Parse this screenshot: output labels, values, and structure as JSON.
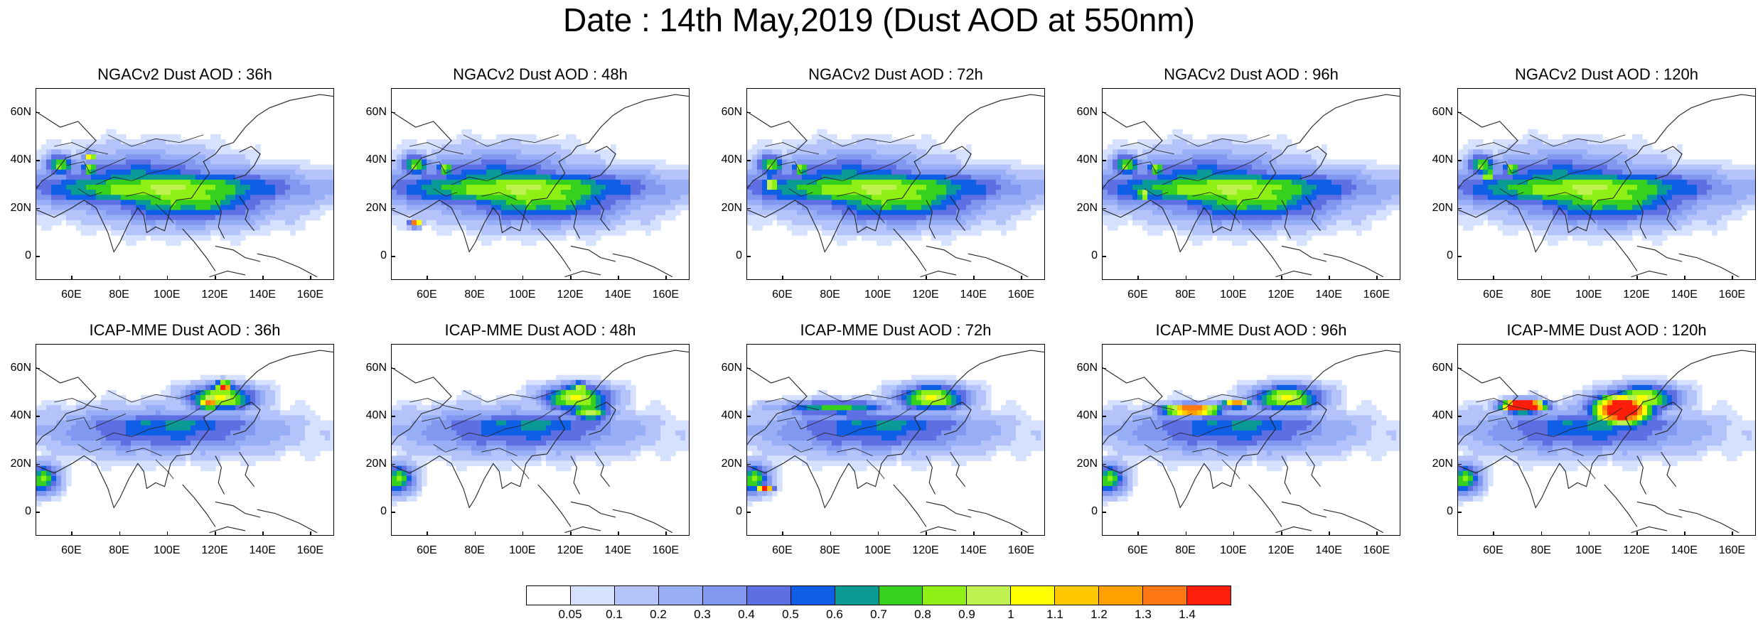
{
  "title": "Date : 14th May,2019 (Dust AOD at 550nm)",
  "lat_ticks": [
    "60N",
    "40N",
    "20N",
    "0"
  ],
  "lat_values": [
    60,
    40,
    20,
    0
  ],
  "lon_ticks": [
    "60E",
    "80E",
    "100E",
    "120E",
    "140E",
    "160E"
  ],
  "lon_values": [
    60,
    80,
    100,
    120,
    140,
    160
  ],
  "map_extent": {
    "lon": [
      45,
      170
    ],
    "lat": [
      -10,
      70
    ]
  },
  "panels": [
    {
      "title": "NGACv2 Dust AOD : 36h",
      "model": "NGACv2",
      "lead_hours": 36,
      "blobs": [
        [
          0.35,
          0.5,
          0.7,
          0.3,
          0.16,
          0.35
        ],
        [
          0.5,
          0.56,
          0.85,
          0.3,
          0.14,
          0.42
        ],
        [
          0.42,
          0.52,
          0.92,
          0.48,
          0.1,
          0.5
        ],
        [
          0.08,
          0.4,
          0.85,
          0.05,
          0.06,
          0.6
        ],
        [
          0.18,
          0.42,
          1.25,
          0.03,
          0.02,
          0.7
        ],
        [
          0.18,
          0.35,
          1.18,
          0.02,
          0.02,
          0.8
        ]
      ]
    },
    {
      "title": "NGACv2 Dust AOD : 48h",
      "model": "NGACv2",
      "lead_hours": 48,
      "blobs": [
        [
          0.35,
          0.5,
          0.7,
          0.3,
          0.16,
          0.35
        ],
        [
          0.5,
          0.56,
          0.85,
          0.3,
          0.14,
          0.42
        ],
        [
          0.42,
          0.52,
          0.92,
          0.48,
          0.1,
          0.5
        ],
        [
          0.08,
          0.4,
          0.85,
          0.05,
          0.06,
          0.6
        ],
        [
          0.08,
          0.7,
          1.5,
          0.02,
          0.02,
          0.7
        ],
        [
          0.18,
          0.42,
          1.25,
          0.03,
          0.02,
          0.8
        ]
      ]
    },
    {
      "title": "NGACv2 Dust AOD : 72h",
      "model": "NGACv2",
      "lead_hours": 72,
      "blobs": [
        [
          0.35,
          0.5,
          0.7,
          0.3,
          0.16,
          0.35
        ],
        [
          0.5,
          0.56,
          0.85,
          0.3,
          0.14,
          0.42
        ],
        [
          0.42,
          0.52,
          0.92,
          0.48,
          0.1,
          0.5
        ],
        [
          0.08,
          0.4,
          0.85,
          0.05,
          0.06,
          0.6
        ],
        [
          0.18,
          0.42,
          1.25,
          0.03,
          0.02,
          0.7
        ],
        [
          0.08,
          0.5,
          1.05,
          0.03,
          0.05,
          0.8
        ]
      ]
    },
    {
      "title": "NGACv2 Dust AOD : 96h",
      "model": "NGACv2",
      "lead_hours": 96,
      "blobs": [
        [
          0.35,
          0.5,
          0.7,
          0.3,
          0.16,
          0.35
        ],
        [
          0.5,
          0.56,
          0.85,
          0.3,
          0.14,
          0.42
        ],
        [
          0.42,
          0.52,
          0.92,
          0.48,
          0.1,
          0.5
        ],
        [
          0.08,
          0.4,
          0.85,
          0.05,
          0.06,
          0.6
        ],
        [
          0.18,
          0.42,
          1.25,
          0.03,
          0.02,
          0.7
        ],
        [
          0.14,
          0.55,
          1.0,
          0.03,
          0.04,
          0.8
        ]
      ]
    },
    {
      "title": "NGACv2 Dust AOD : 120h",
      "model": "NGACv2",
      "lead_hours": 120,
      "blobs": [
        [
          0.35,
          0.5,
          0.7,
          0.3,
          0.16,
          0.35
        ],
        [
          0.5,
          0.56,
          0.85,
          0.3,
          0.14,
          0.42
        ],
        [
          0.42,
          0.52,
          0.92,
          0.48,
          0.1,
          0.5
        ],
        [
          0.08,
          0.4,
          0.85,
          0.05,
          0.06,
          0.6
        ],
        [
          0.18,
          0.42,
          1.25,
          0.03,
          0.02,
          0.7
        ],
        [
          0.1,
          0.45,
          1.1,
          0.02,
          0.03,
          0.8
        ]
      ]
    },
    {
      "title": "ICAP-MME Dust AOD : 36h",
      "model": "ICAP-MME",
      "lead_hours": 36,
      "blobs": [
        [
          0.42,
          0.45,
          0.55,
          0.4,
          0.12,
          0.35
        ],
        [
          0.45,
          0.42,
          0.65,
          0.35,
          0.06,
          0.42
        ],
        [
          0.02,
          0.7,
          0.8,
          0.06,
          0.08,
          0.5
        ],
        [
          0.62,
          0.28,
          1.0,
          0.12,
          0.07,
          0.6
        ],
        [
          0.58,
          0.3,
          1.35,
          0.04,
          0.04,
          0.7
        ],
        [
          0.63,
          0.22,
          1.45,
          0.03,
          0.03,
          0.8
        ]
      ]
    },
    {
      "title": "ICAP-MME Dust AOD : 48h",
      "model": "ICAP-MME",
      "lead_hours": 48,
      "blobs": [
        [
          0.42,
          0.45,
          0.55,
          0.4,
          0.12,
          0.35
        ],
        [
          0.45,
          0.42,
          0.65,
          0.35,
          0.06,
          0.42
        ],
        [
          0.02,
          0.7,
          0.8,
          0.06,
          0.08,
          0.5
        ],
        [
          0.62,
          0.28,
          1.0,
          0.12,
          0.07,
          0.6
        ],
        [
          0.66,
          0.35,
          0.95,
          0.08,
          0.05,
          0.7
        ],
        [
          0.63,
          0.22,
          1.0,
          0.03,
          0.03,
          0.8
        ]
      ]
    },
    {
      "title": "ICAP-MME Dust AOD : 72h",
      "model": "ICAP-MME",
      "lead_hours": 72,
      "blobs": [
        [
          0.42,
          0.45,
          0.55,
          0.4,
          0.12,
          0.35
        ],
        [
          0.45,
          0.42,
          0.65,
          0.35,
          0.06,
          0.42
        ],
        [
          0.02,
          0.7,
          0.8,
          0.06,
          0.08,
          0.5
        ],
        [
          0.62,
          0.28,
          1.0,
          0.12,
          0.07,
          0.6
        ],
        [
          0.3,
          0.33,
          0.75,
          0.2,
          0.04,
          0.7
        ],
        [
          0.06,
          0.75,
          1.45,
          0.03,
          0.02,
          0.8
        ]
      ]
    },
    {
      "title": "ICAP-MME Dust AOD : 96h",
      "model": "ICAP-MME",
      "lead_hours": 96,
      "blobs": [
        [
          0.42,
          0.45,
          0.55,
          0.4,
          0.12,
          0.35
        ],
        [
          0.45,
          0.42,
          0.65,
          0.35,
          0.06,
          0.42
        ],
        [
          0.02,
          0.7,
          0.8,
          0.06,
          0.08,
          0.5
        ],
        [
          0.62,
          0.28,
          1.0,
          0.12,
          0.07,
          0.6
        ],
        [
          0.3,
          0.34,
          1.6,
          0.1,
          0.03,
          0.7
        ],
        [
          0.45,
          0.31,
          1.5,
          0.05,
          0.02,
          0.8
        ]
      ]
    },
    {
      "title": "ICAP-MME Dust AOD : 120h",
      "model": "ICAP-MME",
      "lead_hours": 120,
      "blobs": [
        [
          0.42,
          0.45,
          0.55,
          0.4,
          0.12,
          0.35
        ],
        [
          0.45,
          0.42,
          0.65,
          0.35,
          0.06,
          0.42
        ],
        [
          0.02,
          0.7,
          0.8,
          0.06,
          0.08,
          0.5
        ],
        [
          0.62,
          0.28,
          1.0,
          0.12,
          0.07,
          0.6
        ],
        [
          0.22,
          0.32,
          2.4,
          0.07,
          0.03,
          0.7
        ],
        [
          0.55,
          0.34,
          1.9,
          0.1,
          0.08,
          0.8
        ]
      ]
    }
  ],
  "colorbar": {
    "labels": [
      "0.05",
      "0.1",
      "0.2",
      "0.3",
      "0.4",
      "0.5",
      "0.6",
      "0.7",
      "0.8",
      "0.9",
      "1",
      "1.1",
      "1.2",
      "1.3",
      "1.4"
    ],
    "bounds": [
      0.05,
      0.1,
      0.2,
      0.3,
      0.4,
      0.5,
      0.6,
      0.7,
      0.8,
      0.9,
      1,
      1.1,
      1.2,
      1.3,
      1.4
    ],
    "colors": [
      "#ffffff",
      "#d6e0ff",
      "#b4c4fa",
      "#98aef6",
      "#8098f0",
      "#5e6fe4",
      "#0f5ee6",
      "#0a9a96",
      "#36d11e",
      "#8ef014",
      "#bff24e",
      "#ffff00",
      "#ffc800",
      "#ffa000",
      "#ff7814",
      "#ff1e0a"
    ]
  }
}
